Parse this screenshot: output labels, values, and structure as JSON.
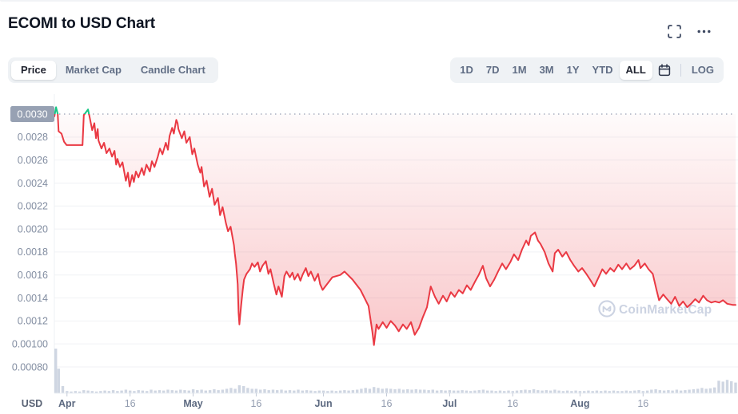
{
  "page": {
    "title": "ECOMI to USD Chart"
  },
  "icons": {
    "expand": "fullscreen-expand",
    "more": "ellipsis",
    "calendar": "calendar",
    "watermark_logo": "coinmarketcap-logo"
  },
  "toolbar": {
    "chart_type_tabs": [
      {
        "label": "Price",
        "active": true
      },
      {
        "label": "Market Cap",
        "active": false
      },
      {
        "label": "Candle Chart",
        "active": false
      }
    ],
    "range_tabs": [
      {
        "label": "1D",
        "active": false
      },
      {
        "label": "7D",
        "active": false
      },
      {
        "label": "1M",
        "active": false
      },
      {
        "label": "3M",
        "active": false
      },
      {
        "label": "1Y",
        "active": false
      },
      {
        "label": "YTD",
        "active": false
      },
      {
        "label": "ALL",
        "active": true
      }
    ],
    "log_label": "LOG"
  },
  "chart_data": {
    "type": "line",
    "title": "ECOMI to USD Chart",
    "ylabel": "USD",
    "currency_label": "USD",
    "watermark": "CoinMarketCap",
    "baseline": 0.003,
    "ylim": [
      0.0008,
      0.003
    ],
    "x_range_days": 162,
    "colors": {
      "line": "#ea3943",
      "up": "#16c784",
      "volume": "#cfd6e2",
      "watermark": "#ccd3e2",
      "badge": "#97a1b3",
      "grid": "#f0f2f5",
      "axis_border": "#edf0f4",
      "dotted": "#a9b1c2",
      "tick": "#c3cad7",
      "y_text": "#828da1",
      "month_text": "#5d6a81",
      "minor_text": "#939db0",
      "usd_text": "#5a6375"
    },
    "y_ticks": [
      {
        "label": "0.0030",
        "value": 0.003,
        "highlighted": true
      },
      {
        "label": "0.0028",
        "value": 0.0028
      },
      {
        "label": "0.0026",
        "value": 0.0026
      },
      {
        "label": "0.0024",
        "value": 0.0024
      },
      {
        "label": "0.0022",
        "value": 0.0022
      },
      {
        "label": "0.0020",
        "value": 0.002
      },
      {
        "label": "0.0018",
        "value": 0.0018
      },
      {
        "label": "0.0016",
        "value": 0.0016
      },
      {
        "label": "0.0014",
        "value": 0.0014
      },
      {
        "label": "0.0012",
        "value": 0.0012
      },
      {
        "label": "0.00100",
        "value": 0.001
      },
      {
        "label": "0.00080",
        "value": 0.0008
      }
    ],
    "x_ticks": [
      {
        "label": "Apr",
        "day": 3,
        "major": true
      },
      {
        "label": "16",
        "day": 18,
        "major": false
      },
      {
        "label": "May",
        "day": 33,
        "major": true
      },
      {
        "label": "16",
        "day": 48,
        "major": false
      },
      {
        "label": "Jun",
        "day": 64,
        "major": true
      },
      {
        "label": "16",
        "day": 79,
        "major": false
      },
      {
        "label": "Jul",
        "day": 94,
        "major": true
      },
      {
        "label": "16",
        "day": 109,
        "major": false
      },
      {
        "label": "Aug",
        "day": 125,
        "major": true
      },
      {
        "label": "16",
        "day": 140,
        "major": false
      }
    ],
    "price_series": [
      [
        0,
        0.00298
      ],
      [
        0.4,
        0.00306
      ],
      [
        0.8,
        0.003
      ],
      [
        1,
        0.00285
      ],
      [
        1.7,
        0.00283
      ],
      [
        2.3,
        0.00276
      ],
      [
        2.9,
        0.00273
      ],
      [
        6.7,
        0.00273
      ],
      [
        7,
        0.00299
      ],
      [
        8,
        0.00304
      ],
      [
        8.4,
        0.00297
      ],
      [
        9,
        0.00286
      ],
      [
        9.5,
        0.00292
      ],
      [
        9.9,
        0.00279
      ],
      [
        10.3,
        0.00287
      ],
      [
        10.5,
        0.00277
      ],
      [
        11.2,
        0.0027
      ],
      [
        11.8,
        0.00275
      ],
      [
        12.4,
        0.00266
      ],
      [
        13.1,
        0.0027
      ],
      [
        13.7,
        0.00263
      ],
      [
        14.3,
        0.00268
      ],
      [
        14.7,
        0.00256
      ],
      [
        15,
        0.00261
      ],
      [
        15.6,
        0.00254
      ],
      [
        16.2,
        0.00258
      ],
      [
        17,
        0.00242
      ],
      [
        17.5,
        0.00249
      ],
      [
        17.9,
        0.00237
      ],
      [
        18.5,
        0.00247
      ],
      [
        18.9,
        0.00241
      ],
      [
        19.4,
        0.0025
      ],
      [
        20,
        0.00245
      ],
      [
        20.8,
        0.00253
      ],
      [
        21.3,
        0.00247
      ],
      [
        21.9,
        0.00256
      ],
      [
        22.7,
        0.0025
      ],
      [
        23.2,
        0.00259
      ],
      [
        23.8,
        0.00254
      ],
      [
        24.6,
        0.00263
      ],
      [
        25.1,
        0.0027
      ],
      [
        25.7,
        0.00265
      ],
      [
        26.5,
        0.00275
      ],
      [
        27,
        0.00269
      ],
      [
        27.4,
        0.00281
      ],
      [
        28,
        0.00288
      ],
      [
        28.4,
        0.00283
      ],
      [
        29,
        0.00295
      ],
      [
        29.3,
        0.00292
      ],
      [
        29.5,
        0.00287
      ],
      [
        30.3,
        0.00279
      ],
      [
        30.9,
        0.00285
      ],
      [
        31.4,
        0.00275
      ],
      [
        32.2,
        0.0028
      ],
      [
        32.8,
        0.00265
      ],
      [
        33.3,
        0.0027
      ],
      [
        34.1,
        0.00256
      ],
      [
        34.7,
        0.00249
      ],
      [
        35,
        0.00254
      ],
      [
        35.6,
        0.00237
      ],
      [
        36.2,
        0.00242
      ],
      [
        36.9,
        0.00228
      ],
      [
        37.5,
        0.00235
      ],
      [
        38.1,
        0.00221
      ],
      [
        38.9,
        0.00227
      ],
      [
        39.4,
        0.00212
      ],
      [
        40,
        0.00219
      ],
      [
        40.8,
        0.00205
      ],
      [
        41.3,
        0.00198
      ],
      [
        41.9,
        0.00202
      ],
      [
        42.7,
        0.00186
      ],
      [
        42.9,
        0.00179
      ],
      [
        43.2,
        0.0017
      ],
      [
        43.6,
        0.00152
      ],
      [
        43.8,
        0.00127
      ],
      [
        44,
        0.00117
      ],
      [
        44.4,
        0.00133
      ],
      [
        44.8,
        0.00147
      ],
      [
        45.1,
        0.00156
      ],
      [
        45.7,
        0.00161
      ],
      [
        46.5,
        0.00165
      ],
      [
        47,
        0.0017
      ],
      [
        47.6,
        0.00167
      ],
      [
        48.4,
        0.00171
      ],
      [
        48.9,
        0.00163
      ],
      [
        49.5,
        0.00168
      ],
      [
        50.3,
        0.00172
      ],
      [
        50.9,
        0.00161
      ],
      [
        51.4,
        0.00165
      ],
      [
        52.2,
        0.00152
      ],
      [
        52.8,
        0.00143
      ],
      [
        53.3,
        0.0015
      ],
      [
        54.1,
        0.00141
      ],
      [
        54.7,
        0.00159
      ],
      [
        55.2,
        0.00163
      ],
      [
        56,
        0.00158
      ],
      [
        56.6,
        0.00162
      ],
      [
        57.1,
        0.00156
      ],
      [
        57.9,
        0.00161
      ],
      [
        58.5,
        0.00155
      ],
      [
        59,
        0.0016
      ],
      [
        59.8,
        0.00166
      ],
      [
        60.4,
        0.00159
      ],
      [
        61,
        0.00163
      ],
      [
        61.9,
        0.00155
      ],
      [
        62.7,
        0.00161
      ],
      [
        63.2,
        0.00152
      ],
      [
        63.8,
        0.00147
      ],
      [
        66.1,
        0.00158
      ],
      [
        68,
        0.0016
      ],
      [
        69,
        0.00163
      ],
      [
        70.9,
        0.00156
      ],
      [
        72.8,
        0.00147
      ],
      [
        74.7,
        0.00133
      ],
      [
        75.6,
        0.00111
      ],
      [
        76,
        0.00099
      ],
      [
        76.6,
        0.00117
      ],
      [
        77.1,
        0.00113
      ],
      [
        78.1,
        0.00119
      ],
      [
        79,
        0.00114
      ],
      [
        80,
        0.0012
      ],
      [
        81,
        0.00116
      ],
      [
        81.9,
        0.00111
      ],
      [
        82.9,
        0.00117
      ],
      [
        83.8,
        0.00113
      ],
      [
        84.8,
        0.00119
      ],
      [
        85.7,
        0.00108
      ],
      [
        86.7,
        0.00114
      ],
      [
        87.6,
        0.00123
      ],
      [
        88.6,
        0.00132
      ],
      [
        89.5,
        0.0015
      ],
      [
        90.5,
        0.00141
      ],
      [
        91.4,
        0.00135
      ],
      [
        92.4,
        0.00142
      ],
      [
        93.3,
        0.00137
      ],
      [
        94.3,
        0.00145
      ],
      [
        95.2,
        0.00141
      ],
      [
        96.2,
        0.00147
      ],
      [
        97.1,
        0.00144
      ],
      [
        98.1,
        0.00151
      ],
      [
        99,
        0.00147
      ],
      [
        100,
        0.00154
      ],
      [
        100.9,
        0.0016
      ],
      [
        101.9,
        0.00168
      ],
      [
        102.7,
        0.00157
      ],
      [
        103.6,
        0.0015
      ],
      [
        104.6,
        0.00156
      ],
      [
        105.5,
        0.00163
      ],
      [
        106.5,
        0.0017
      ],
      [
        107.4,
        0.00165
      ],
      [
        108.4,
        0.00171
      ],
      [
        109.3,
        0.00178
      ],
      [
        110.3,
        0.00173
      ],
      [
        111.2,
        0.00182
      ],
      [
        112.2,
        0.0019
      ],
      [
        112.8,
        0.00186
      ],
      [
        113.3,
        0.00194
      ],
      [
        114.3,
        0.00197
      ],
      [
        115,
        0.0019
      ],
      [
        115.6,
        0.00187
      ],
      [
        116.6,
        0.0018
      ],
      [
        117.5,
        0.0017
      ],
      [
        118.5,
        0.00163
      ],
      [
        119,
        0.00179
      ],
      [
        119.8,
        0.00182
      ],
      [
        120.8,
        0.00176
      ],
      [
        121.7,
        0.0018
      ],
      [
        122.7,
        0.00173
      ],
      [
        123.6,
        0.00168
      ],
      [
        124.6,
        0.00163
      ],
      [
        125.5,
        0.00166
      ],
      [
        126.5,
        0.00161
      ],
      [
        127.4,
        0.00156
      ],
      [
        128.4,
        0.0015
      ],
      [
        129.3,
        0.00157
      ],
      [
        130.3,
        0.00165
      ],
      [
        131.2,
        0.00161
      ],
      [
        132.2,
        0.00166
      ],
      [
        133.1,
        0.00163
      ],
      [
        134.1,
        0.00169
      ],
      [
        135,
        0.00165
      ],
      [
        136,
        0.0017
      ],
      [
        136.9,
        0.00165
      ],
      [
        137.9,
        0.00168
      ],
      [
        138.9,
        0.00173
      ],
      [
        139.4,
        0.00166
      ],
      [
        140.4,
        0.0017
      ],
      [
        141.3,
        0.00165
      ],
      [
        142.3,
        0.00161
      ],
      [
        143.2,
        0.00147
      ],
      [
        143.8,
        0.00138
      ],
      [
        144.8,
        0.00143
      ],
      [
        145.7,
        0.00139
      ],
      [
        146.7,
        0.00135
      ],
      [
        147.6,
        0.00141
      ],
      [
        148.6,
        0.00133
      ],
      [
        149.5,
        0.00137
      ],
      [
        150.5,
        0.00132
      ],
      [
        151.4,
        0.00135
      ],
      [
        152.4,
        0.00139
      ],
      [
        153.3,
        0.00136
      ],
      [
        154.3,
        0.00142
      ],
      [
        155.2,
        0.00138
      ],
      [
        156.2,
        0.00136
      ],
      [
        157.1,
        0.00137
      ],
      [
        158.1,
        0.00136
      ],
      [
        159,
        0.00138
      ],
      [
        160,
        0.00135
      ],
      [
        161.3,
        0.00134
      ],
      [
        162,
        0.00134
      ]
    ],
    "volume_series": [
      1.0,
      0.55,
      0.16,
      0.05,
      0.04,
      0.05,
      0.04,
      0.07,
      0.06,
      0.05,
      0.04,
      0.05,
      0.06,
      0.05,
      0.07,
      0.05,
      0.06,
      0.08,
      0.06,
      0.05,
      0.07,
      0.06,
      0.05,
      0.08,
      0.06,
      0.07,
      0.06,
      0.08,
      0.07,
      0.06,
      0.08,
      0.07,
      0.06,
      0.09,
      0.07,
      0.08,
      0.06,
      0.07,
      0.09,
      0.07,
      0.08,
      0.1,
      0.12,
      0.1,
      0.18,
      0.16,
      0.12,
      0.1,
      0.1,
      0.08,
      0.09,
      0.07,
      0.08,
      0.07,
      0.08,
      0.06,
      0.07,
      0.06,
      0.08,
      0.06,
      0.07,
      0.06,
      0.05,
      0.06,
      0.06,
      0.05,
      0.06,
      0.05,
      0.06,
      0.07,
      0.06,
      0.07,
      0.08,
      0.1,
      0.12,
      0.1,
      0.14,
      0.12,
      0.1,
      0.11,
      0.1,
      0.09,
      0.1,
      0.08,
      0.09,
      0.08,
      0.09,
      0.08,
      0.08,
      0.07,
      0.08,
      0.06,
      0.07,
      0.06,
      0.07,
      0.06,
      0.06,
      0.07,
      0.06,
      0.05,
      0.06,
      0.07,
      0.08,
      0.06,
      0.06,
      0.05,
      0.06,
      0.05,
      0.06,
      0.05,
      0.06,
      0.07,
      0.08,
      0.07,
      0.09,
      0.07,
      0.06,
      0.07,
      0.06,
      0.08,
      0.06,
      0.05,
      0.06,
      0.05,
      0.06,
      0.05,
      0.05,
      0.06,
      0.05,
      0.06,
      0.05,
      0.06,
      0.05,
      0.06,
      0.05,
      0.05,
      0.06,
      0.05,
      0.06,
      0.07,
      0.05,
      0.06,
      0.08,
      0.09,
      0.07,
      0.06,
      0.07,
      0.06,
      0.08,
      0.06,
      0.07,
      0.08,
      0.09,
      0.1,
      0.12,
      0.1,
      0.11,
      0.13,
      0.28,
      0.26,
      0.3,
      0.27,
      0.24
    ]
  }
}
